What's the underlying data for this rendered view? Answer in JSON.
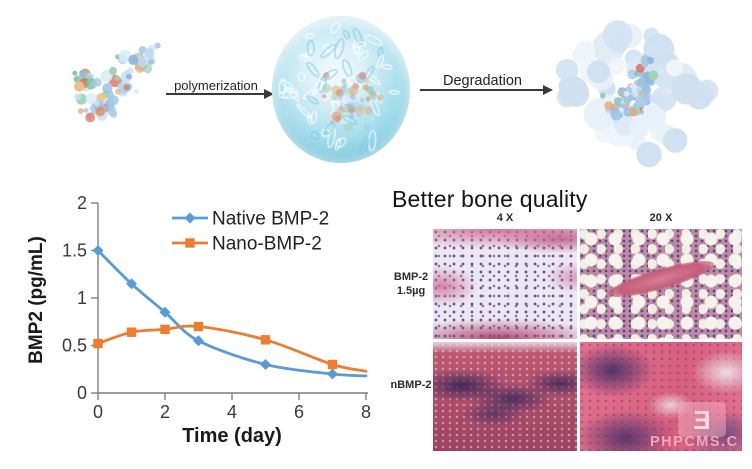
{
  "schematic": {
    "polymerization_label": "polymerization",
    "degradation_label": "Degradation"
  },
  "chart_data": {
    "type": "line",
    "title": "",
    "xlabel": "Time (day)",
    "ylabel": "BMP2 (pg/mL)",
    "xlim": [
      0,
      8
    ],
    "ylim": [
      0,
      2
    ],
    "xticks": [
      0,
      2,
      4,
      6,
      8
    ],
    "yticks": [
      0,
      0.5,
      1,
      1.5,
      2
    ],
    "grid": false,
    "legend_position": "top-inside",
    "series": [
      {
        "name": "Native BMP-2",
        "color": "#5B9BD5",
        "marker": "diamond",
        "x": [
          0,
          1,
          2,
          3,
          5,
          7
        ],
        "values": [
          1.5,
          1.15,
          0.85,
          0.55,
          0.3,
          0.2
        ],
        "trailing_x": 8,
        "trailing_value": 0.18
      },
      {
        "name": "Nano-BMP-2",
        "color": "#ED7D31",
        "marker": "square",
        "x": [
          0,
          1,
          2,
          3,
          5,
          7
        ],
        "values": [
          0.52,
          0.64,
          0.67,
          0.7,
          0.56,
          0.3
        ],
        "trailing_x": 8,
        "trailing_value": 0.23
      }
    ]
  },
  "histology": {
    "title": "Better bone quality",
    "col_headers": [
      "4 X",
      "20 X"
    ],
    "row_labels": [
      {
        "line1": "BMP-2",
        "line2": "1.5µg"
      },
      {
        "line1": "nBMP-2",
        "line2": ""
      }
    ]
  },
  "watermark": {
    "text": "PHPCMS.C"
  }
}
